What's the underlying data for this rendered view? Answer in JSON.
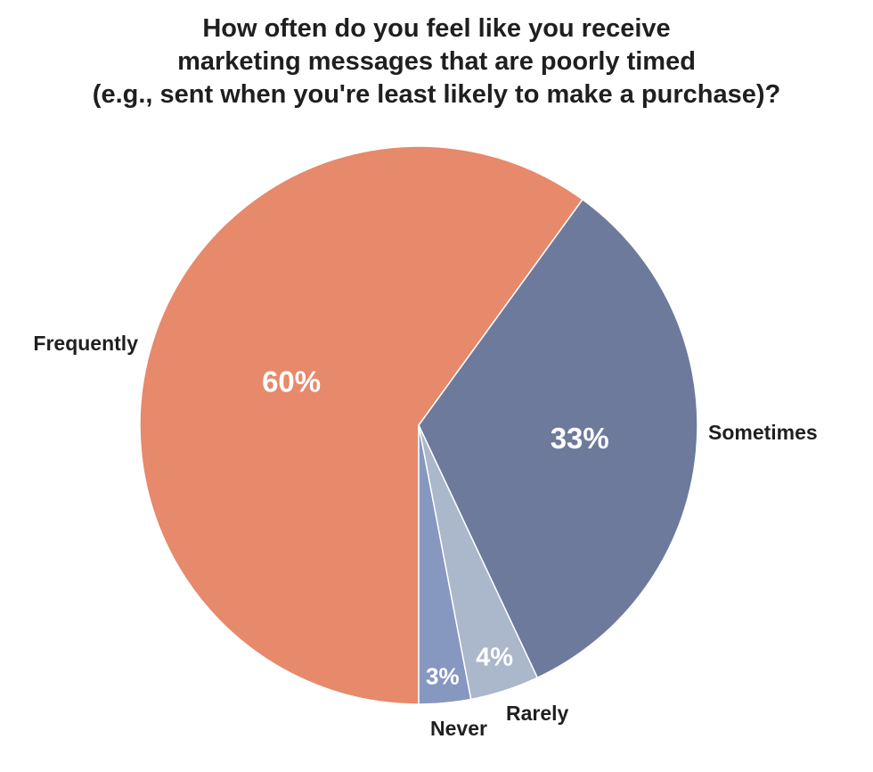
{
  "chart_data": {
    "type": "pie",
    "title_lines": [
      "How often do you feel like you receive",
      "marketing messages that are poorly timed",
      "(e.g., sent when you're least likely to make a purchase)?"
    ],
    "start_angle_deg": 180,
    "direction": "counterclockwise",
    "slices": [
      {
        "label": "Frequently",
        "value": 60,
        "display": "60%",
        "color": "#e7896b"
      },
      {
        "label": "Sometimes",
        "value": 33,
        "display": "33%",
        "color": "#6d7a9c"
      },
      {
        "label": "Rarely",
        "value": 4,
        "display": "4%",
        "color": "#abb7cb"
      },
      {
        "label": "Never",
        "value": 3,
        "display": "3%",
        "color": "#8697c0"
      }
    ]
  }
}
